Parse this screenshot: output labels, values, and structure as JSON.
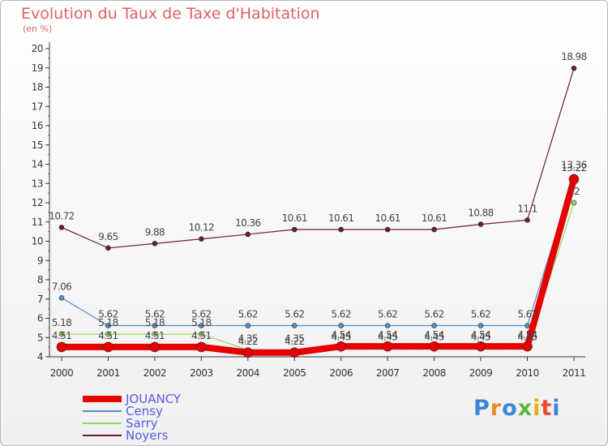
{
  "title": "Evolution du Taux de Taxe d'Habitation",
  "unit": "(en %)",
  "logo": {
    "text": "Proxiti",
    "colors": [
      "#3a86d8",
      "#e88a2a",
      "#3a86d8",
      "#5bb83a",
      "#e0b020",
      "#e84a2a",
      "#3a86d8"
    ]
  },
  "chart_data": {
    "type": "line",
    "x": [
      "2000",
      "2001",
      "2002",
      "2003",
      "2004",
      "2005",
      "2006",
      "2007",
      "2008",
      "2009",
      "2010",
      "2011"
    ],
    "ylim": [
      4,
      20
    ],
    "yticks": [
      4,
      5,
      6,
      7,
      8,
      9,
      10,
      11,
      12,
      13,
      14,
      15,
      16,
      17,
      18,
      19,
      20
    ],
    "grid": false,
    "legend_position": "bottom-left",
    "series": [
      {
        "name": "Noyers",
        "color": "#6b1f2a",
        "values": [
          10.72,
          9.65,
          9.88,
          10.12,
          10.36,
          10.61,
          10.61,
          10.61,
          10.61,
          10.88,
          11.1,
          18.98
        ],
        "labels": [
          "10.72",
          "9.65",
          "9.88",
          "10.12",
          "10.36",
          "10.61",
          "10.61",
          "10.61",
          "10.61",
          "10.88",
          "11.1",
          "18.98"
        ]
      },
      {
        "name": "Censy",
        "color": "#5090c8",
        "values": [
          7.06,
          5.62,
          5.62,
          5.62,
          5.62,
          5.62,
          5.62,
          5.62,
          5.62,
          5.62,
          5.62,
          13.36
        ],
        "labels": [
          "7.06",
          "5.62",
          "5.62",
          "5.62",
          "5.62",
          "5.62",
          "5.62",
          "5.62",
          "5.62",
          "5.62",
          "5.62",
          "13.36"
        ]
      },
      {
        "name": "Sarry",
        "color": "#90d860",
        "values": [
          5.18,
          5.18,
          5.18,
          5.18,
          4.35,
          4.35,
          4.45,
          4.45,
          4.45,
          4.45,
          4.45,
          12
        ],
        "labels": [
          "5.18",
          "5.18",
          "5.18",
          "5.18",
          "4.35",
          "4.35",
          "4.45",
          "4.45",
          "4.45",
          "4.45",
          "4.45",
          "12"
        ]
      },
      {
        "name": "JOUANCY",
        "color": "#e80000",
        "values": [
          4.51,
          4.51,
          4.51,
          4.51,
          4.22,
          4.22,
          4.54,
          4.54,
          4.54,
          4.54,
          4.54,
          13.22
        ],
        "labels": [
          "4.51",
          "4.51",
          "4.51",
          "4.51",
          "4.22",
          "4.22",
          "4.54",
          "4.54",
          "4.54",
          "4.54",
          "4.54",
          "13.22"
        ]
      }
    ],
    "legend_order": [
      "JOUANCY",
      "Censy",
      "Sarry",
      "Noyers"
    ]
  }
}
